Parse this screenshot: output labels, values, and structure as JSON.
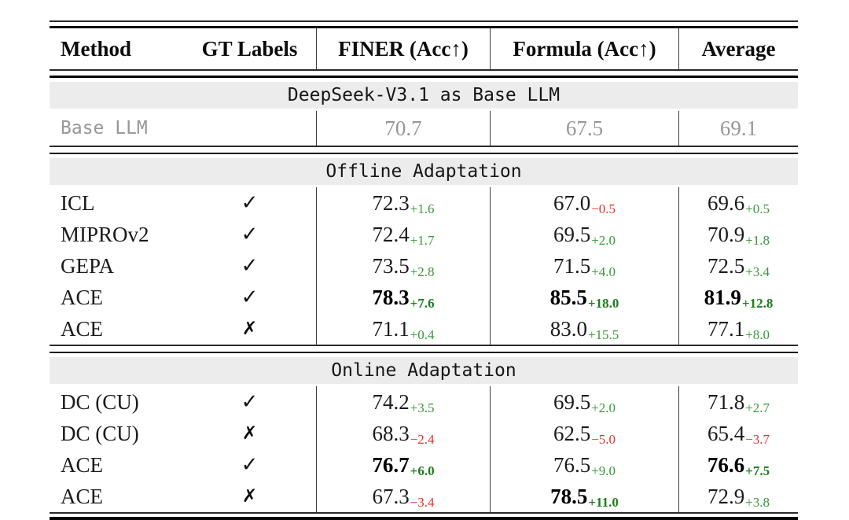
{
  "header": {
    "method": "Method",
    "gt_labels": "GT Labels",
    "finer": "FINER (Acc↑)",
    "formula": "Formula (Acc↑)",
    "average": "Average"
  },
  "sections": [
    {
      "banner": "DeepSeek-V3.1 as Base LLM",
      "rows": [
        {
          "method": "Base LLM",
          "gt": "",
          "muted": true,
          "cells": [
            {
              "v": "70.7"
            },
            {
              "v": "67.5"
            },
            {
              "v": "69.1"
            }
          ]
        }
      ]
    },
    {
      "banner": "Offline Adaptation",
      "rows": [
        {
          "method": "ICL",
          "gt": "✓",
          "cells": [
            {
              "v": "72.3",
              "d": "+1.6",
              "t": "up"
            },
            {
              "v": "67.0",
              "d": "−0.5",
              "t": "down"
            },
            {
              "v": "69.6",
              "d": "+0.5",
              "t": "up"
            }
          ]
        },
        {
          "method": "MIPROv2",
          "gt": "✓",
          "cells": [
            {
              "v": "72.4",
              "d": "+1.7",
              "t": "up"
            },
            {
              "v": "69.5",
              "d": "+2.0",
              "t": "up"
            },
            {
              "v": "70.9",
              "d": "+1.8",
              "t": "up"
            }
          ]
        },
        {
          "method": "GEPA",
          "gt": "✓",
          "cells": [
            {
              "v": "73.5",
              "d": "+2.8",
              "t": "up"
            },
            {
              "v": "71.5",
              "d": "+4.0",
              "t": "up"
            },
            {
              "v": "72.5",
              "d": "+3.4",
              "t": "up"
            }
          ]
        },
        {
          "method": "ACE",
          "gt": "✓",
          "cells": [
            {
              "v": "78.3",
              "d": "+7.6",
              "t": "up",
              "b": true
            },
            {
              "v": "85.5",
              "d": "+18.0",
              "t": "up",
              "b": true
            },
            {
              "v": "81.9",
              "d": "+12.8",
              "t": "up",
              "b": true
            }
          ]
        },
        {
          "method": "ACE",
          "gt": "✗",
          "cells": [
            {
              "v": "71.1",
              "d": "+0.4",
              "t": "up"
            },
            {
              "v": "83.0",
              "d": "+15.5",
              "t": "up"
            },
            {
              "v": "77.1",
              "d": "+8.0",
              "t": "up"
            }
          ]
        }
      ]
    },
    {
      "banner": "Online Adaptation",
      "rows": [
        {
          "method": "DC (CU)",
          "gt": "✓",
          "cells": [
            {
              "v": "74.2",
              "d": "+3.5",
              "t": "up"
            },
            {
              "v": "69.5",
              "d": "+2.0",
              "t": "up"
            },
            {
              "v": "71.8",
              "d": "+2.7",
              "t": "up"
            }
          ]
        },
        {
          "method": "DC (CU)",
          "gt": "✗",
          "cells": [
            {
              "v": "68.3",
              "d": "−2.4",
              "t": "down"
            },
            {
              "v": "62.5",
              "d": "−5.0",
              "t": "down"
            },
            {
              "v": "65.4",
              "d": "−3.7",
              "t": "down"
            }
          ]
        },
        {
          "method": "ACE",
          "gt": "✓",
          "cells": [
            {
              "v": "76.7",
              "d": "+6.0",
              "t": "up",
              "b": true
            },
            {
              "v": "76.5",
              "d": "+9.0",
              "t": "up"
            },
            {
              "v": "76.6",
              "d": "+7.5",
              "t": "up",
              "b": true
            }
          ]
        },
        {
          "method": "ACE",
          "gt": "✗",
          "cells": [
            {
              "v": "67.3",
              "d": "−3.4",
              "t": "down"
            },
            {
              "v": "78.5",
              "d": "+11.0",
              "t": "up",
              "b": true
            },
            {
              "v": "72.9",
              "d": "+3.8",
              "t": "up"
            }
          ]
        }
      ]
    }
  ],
  "colors": {
    "positive_green": "#389838",
    "positive_green_bold": "#1d7c1d",
    "negative_red": "#e23228",
    "banner_background": "#ececec",
    "muted_gray": "#979797"
  }
}
